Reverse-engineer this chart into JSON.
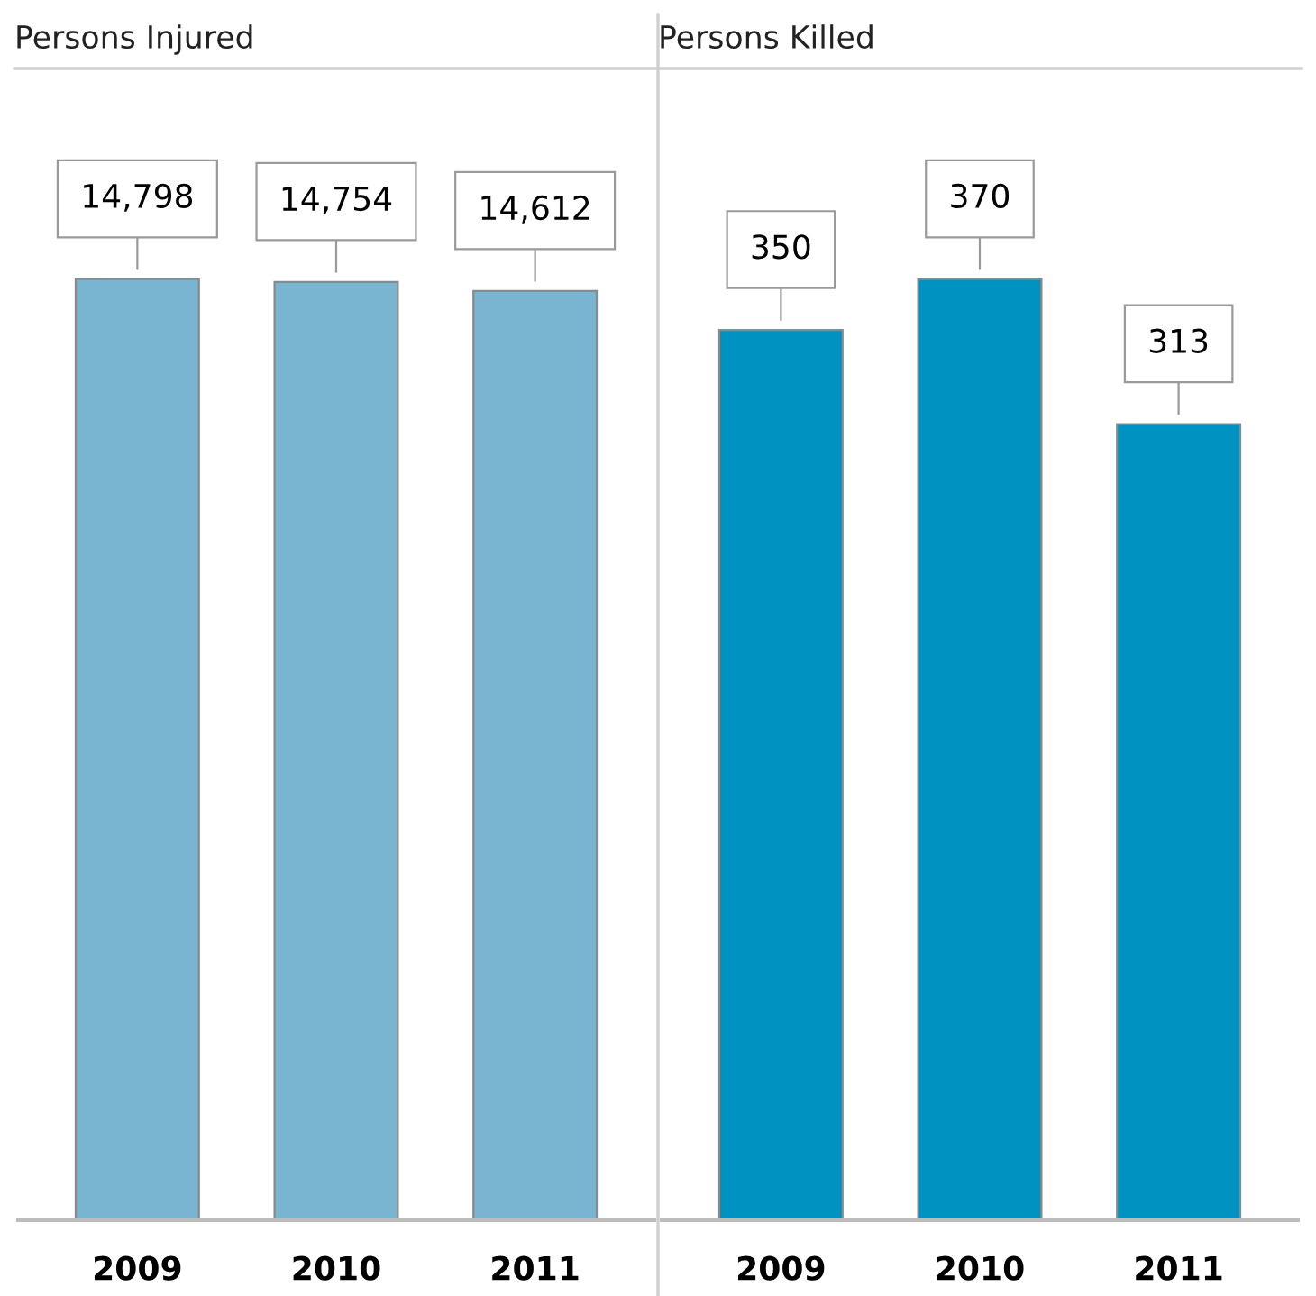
{
  "chart_data": [
    {
      "type": "bar",
      "title": "Persons Injured",
      "categories": [
        "2009",
        "2010",
        "2011"
      ],
      "values": [
        14798,
        14754,
        14612
      ],
      "value_labels": [
        "14,798",
        "14,754",
        "14,612"
      ],
      "color": "#79b4d1",
      "tick_labels": "x",
      "grid": false,
      "legend": false
    },
    {
      "type": "bar",
      "title": "Persons Killed",
      "categories": [
        "2009",
        "2010",
        "2011"
      ],
      "values": [
        350,
        370,
        313
      ],
      "value_labels": [
        "350",
        "370",
        "313"
      ],
      "color": "#0092c0",
      "tick_labels": "x",
      "grid": false,
      "legend": false
    }
  ]
}
